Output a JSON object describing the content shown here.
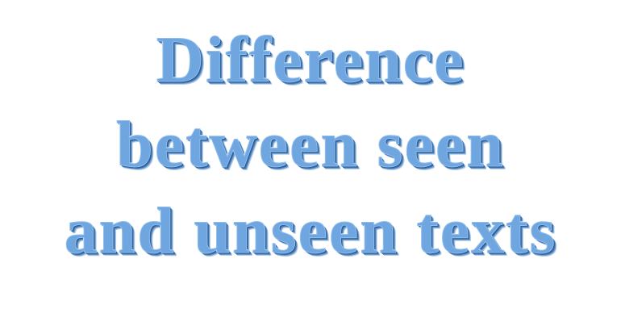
{
  "title": {
    "lines": [
      "Difference",
      "between seen",
      "and unseen texts"
    ]
  },
  "colors": {
    "background": "#ffffff",
    "text_fill": "#6fa6df",
    "shadow_dark": "#1f4f86"
  }
}
